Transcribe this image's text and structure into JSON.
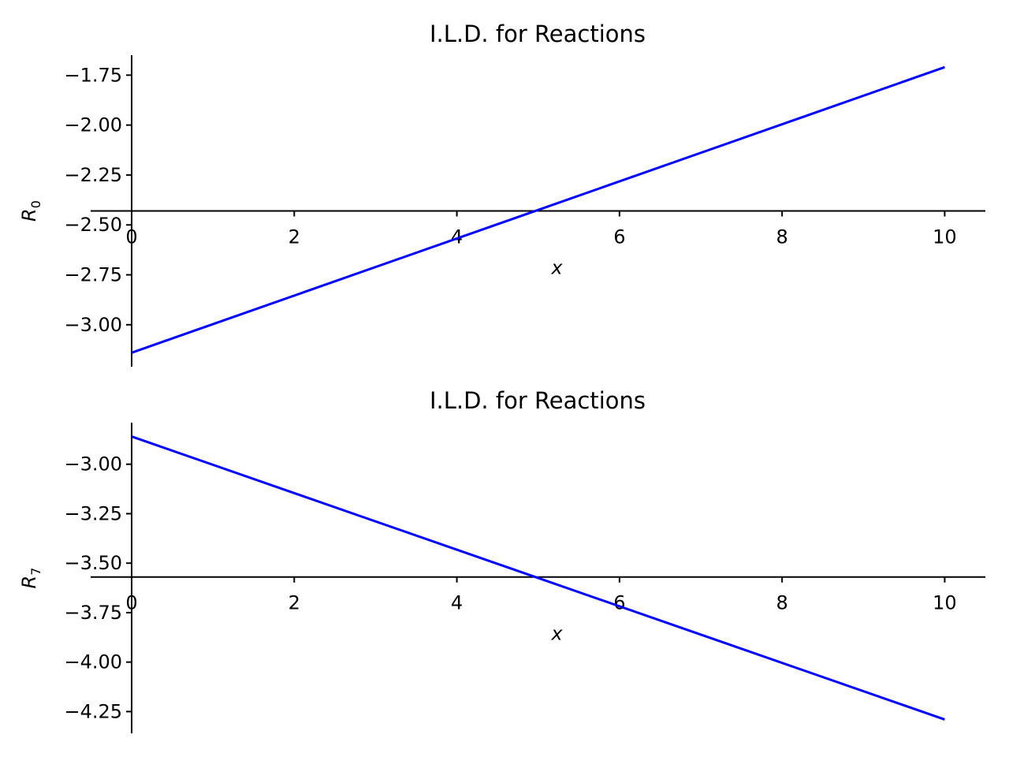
{
  "chart_data": [
    {
      "type": "line",
      "title": "I.L.D. for Reactions",
      "xlabel": "x",
      "ylabel": "R",
      "ylabel_subscript": "0",
      "xlim": [
        0,
        10.5
      ],
      "ylim": [
        -3.21,
        -1.65
      ],
      "x_spine_at": -2.43,
      "xticks": [
        0,
        2,
        4,
        6,
        8,
        10
      ],
      "yticks": [
        -1.75,
        -2.0,
        -2.25,
        -2.5,
        -2.75,
        -3.0
      ],
      "ytick_labels": [
        "−1.75",
        "−2.00",
        "−2.25",
        "−2.50",
        "−2.75",
        "−3.00"
      ],
      "grid": false,
      "series": [
        {
          "x": [
            0,
            10
          ],
          "y": [
            -3.14,
            -1.71
          ],
          "color": "#0000ff"
        }
      ]
    },
    {
      "type": "line",
      "title": "I.L.D. for Reactions",
      "xlabel": "x",
      "ylabel": "R",
      "ylabel_subscript": "7",
      "xlim": [
        0,
        10.5
      ],
      "ylim": [
        -4.36,
        -2.79
      ],
      "x_spine_at": -3.57,
      "xticks": [
        0,
        2,
        4,
        6,
        8,
        10
      ],
      "yticks": [
        -3.0,
        -3.25,
        -3.5,
        -3.75,
        -4.0,
        -4.25
      ],
      "ytick_labels": [
        "−3.00",
        "−3.25",
        "−3.50",
        "−3.75",
        "−4.00",
        "−4.25"
      ],
      "grid": false,
      "series": [
        {
          "x": [
            0,
            10
          ],
          "y": [
            -2.86,
            -4.29
          ],
          "color": "#0000ff"
        }
      ]
    }
  ]
}
